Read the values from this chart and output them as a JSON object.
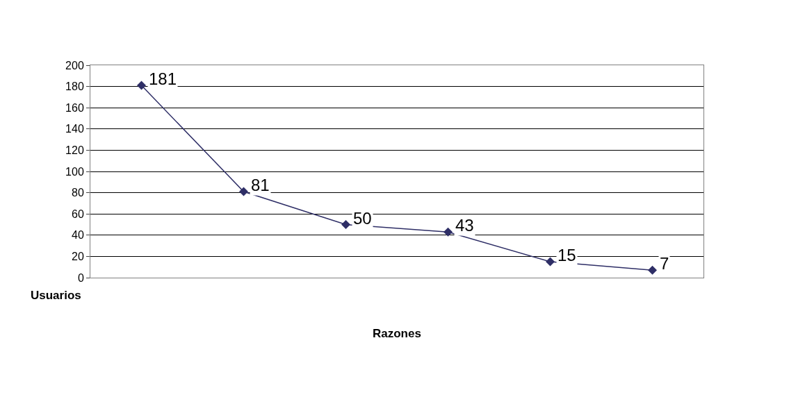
{
  "chart_data": {
    "type": "line",
    "xlabel": "Razones",
    "ylabel": "Usuarios",
    "categories": [
      null,
      null,
      null,
      null,
      null,
      null
    ],
    "series": [
      {
        "color": "#2e2e66",
        "values": [
          181,
          81,
          50,
          43,
          15,
          7
        ]
      }
    ],
    "ylim": [
      0,
      200
    ],
    "yticks": [
      0,
      20,
      40,
      60,
      80,
      100,
      120,
      140,
      160,
      180,
      200
    ],
    "grid": "y",
    "marker": "diamond",
    "line_style": "solid",
    "data_labels": true,
    "legend": false
  }
}
